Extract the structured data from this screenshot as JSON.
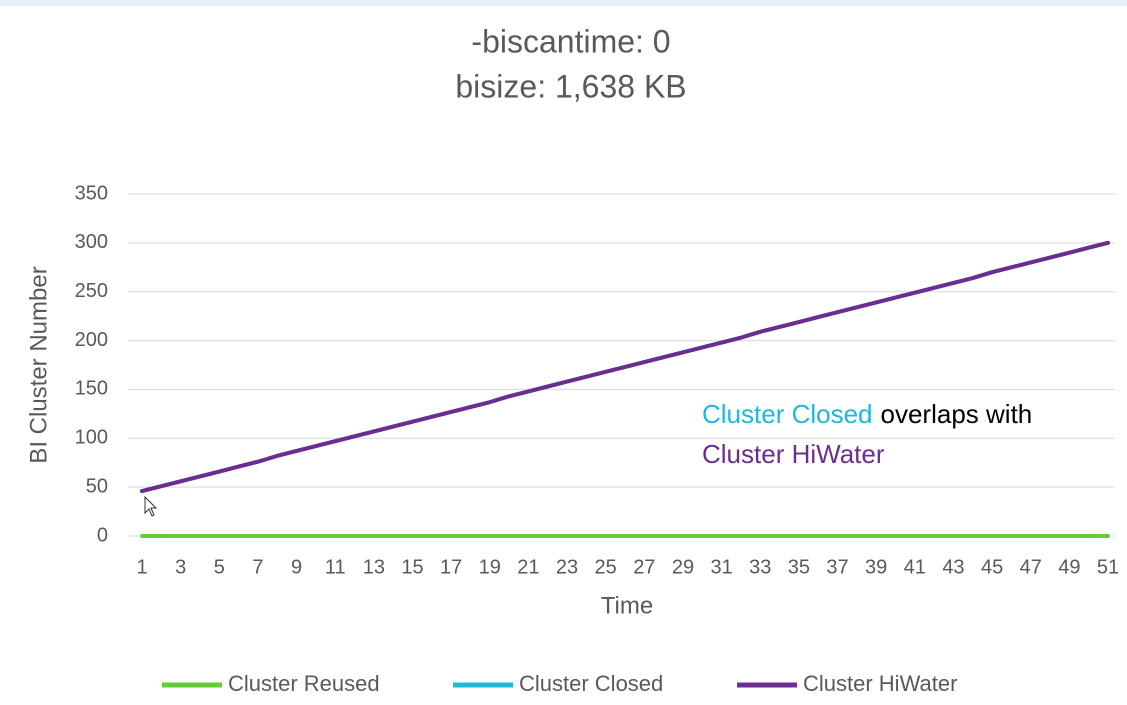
{
  "chart_data": {
    "type": "line",
    "title": [
      "-biscantime: 0",
      "bisize: 1,638 KB"
    ],
    "y_label": "BI Cluster Number",
    "x_label": "Time",
    "categories": [
      1,
      null,
      3,
      null,
      5,
      null,
      7,
      null,
      9,
      null,
      11,
      null,
      13,
      null,
      15,
      null,
      17,
      null,
      19,
      null,
      21,
      null,
      23,
      null,
      25,
      null,
      27,
      null,
      29,
      null,
      31,
      null,
      33,
      null,
      35,
      null,
      37,
      null,
      39,
      null,
      41,
      null,
      43,
      null,
      45,
      null,
      47,
      null,
      49,
      null,
      51
    ],
    "series": [
      {
        "name": "Cluster Reused",
        "color": "#66cc33",
        "values": [
          0,
          0,
          0,
          0,
          0,
          0,
          0,
          0,
          0,
          0,
          0,
          0,
          0,
          0,
          0,
          0,
          0,
          0,
          0,
          0,
          0,
          0,
          0,
          0,
          0,
          0,
          0,
          0,
          0,
          0,
          0,
          0,
          0,
          0,
          0,
          0,
          0,
          0,
          0,
          0,
          0,
          0,
          0,
          0,
          0,
          0,
          0,
          0,
          0,
          0,
          0
        ]
      },
      {
        "name": "Cluster Closed",
        "color": "#1fb8dc",
        "values": [
          46,
          51,
          56,
          61,
          66,
          71,
          76,
          82,
          87,
          92,
          97,
          102,
          107,
          112,
          117,
          122,
          127,
          132,
          137,
          143,
          148,
          153,
          158,
          163,
          168,
          173,
          178,
          183,
          188,
          193,
          198,
          203,
          209,
          214,
          219,
          224,
          229,
          234,
          239,
          244,
          249,
          254,
          259,
          264,
          270,
          275,
          280,
          285,
          290,
          295,
          300
        ]
      },
      {
        "name": "Cluster HiWater",
        "color": "#6e2c91",
        "values": [
          46,
          51,
          56,
          61,
          66,
          71,
          76,
          82,
          87,
          92,
          97,
          102,
          107,
          112,
          117,
          122,
          127,
          132,
          137,
          143,
          148,
          153,
          158,
          163,
          168,
          173,
          178,
          183,
          188,
          193,
          198,
          203,
          209,
          214,
          219,
          224,
          229,
          234,
          239,
          244,
          249,
          254,
          259,
          264,
          270,
          275,
          280,
          285,
          290,
          295,
          300
        ]
      }
    ],
    "ylim": [
      0,
      350
    ],
    "yticks": [
      0,
      50,
      100,
      150,
      200,
      250,
      300,
      350
    ],
    "grid": true,
    "legend": "bottom",
    "annotation": [
      {
        "text": "Cluster Closed",
        "color": "#1fb8dc"
      },
      {
        "text": "overlaps with",
        "color": "#000000"
      },
      {
        "text": "Cluster HiWater",
        "color": "#6e2c91"
      }
    ]
  }
}
